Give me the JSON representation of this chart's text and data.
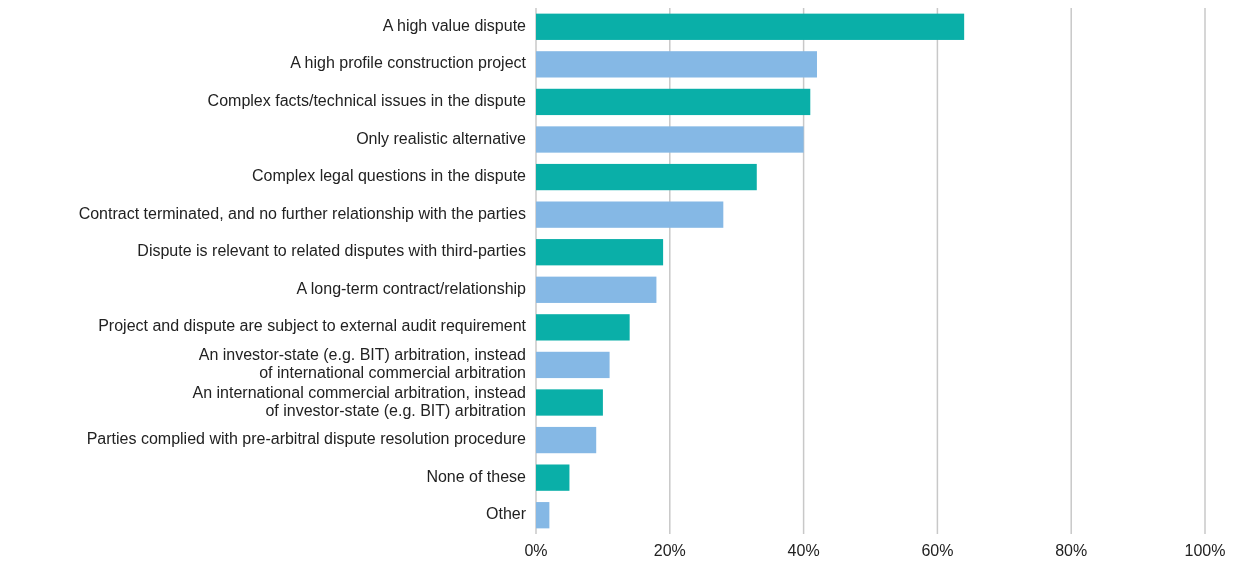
{
  "chart_data": {
    "type": "bar",
    "orientation": "horizontal",
    "categories": [
      "A high value dispute",
      "A high profile construction project",
      "Complex facts/technical issues in the dispute",
      "Only realistic alternative",
      "Complex legal questions in the dispute",
      "Contract terminated, and no further relationship with the parties",
      "Dispute is relevant to related disputes with third-parties",
      "A long-term contract/relationship",
      "Project and dispute are subject to external audit requirement",
      "An investor-state (e.g. BIT) arbitration, instead\nof international commercial arbitration",
      "An international commercial arbitration, instead\nof investor-state (e.g. BIT) arbitration",
      "Parties complied with pre-arbitral dispute resolution procedure",
      "None of these",
      "Other"
    ],
    "values": [
      64,
      42,
      41,
      40,
      33,
      28,
      19,
      18,
      14,
      11,
      10,
      9,
      5,
      2
    ],
    "colors": [
      "#0aafa8",
      "#85b8e5",
      "#0aafa8",
      "#85b8e5",
      "#0aafa8",
      "#85b8e5",
      "#0aafa8",
      "#85b8e5",
      "#0aafa8",
      "#85b8e5",
      "#0aafa8",
      "#85b8e5",
      "#0aafa8",
      "#85b8e5"
    ],
    "xlim": [
      0,
      100
    ],
    "xticks": [
      {
        "value": 0,
        "label": "0%"
      },
      {
        "value": 20,
        "label": "20%"
      },
      {
        "value": 40,
        "label": "40%"
      },
      {
        "value": 60,
        "label": "60%"
      },
      {
        "value": 80,
        "label": "80%"
      },
      {
        "value": 100,
        "label": "100%"
      }
    ],
    "grid": "x"
  }
}
